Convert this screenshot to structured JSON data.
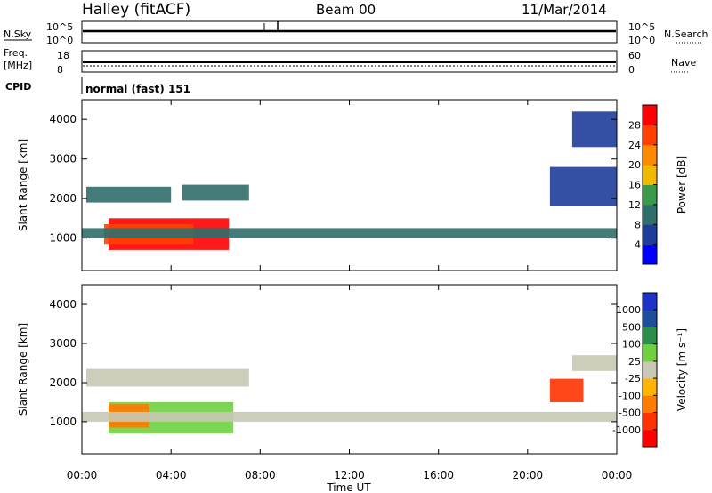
{
  "header": {
    "station": "Halley (fitACF)",
    "beam": "Beam 00",
    "date": "11/Mar/2014"
  },
  "params": {
    "nsky_label": "N.Sky",
    "nsky_ticks": [
      "10^5",
      "10^0"
    ],
    "nsearch_label": "N.Search",
    "nsearch_ticks": [
      "10^5",
      "10^0"
    ],
    "freq_label": "Freq.",
    "freq_unit": "[MHz]",
    "freq_ticks": [
      "18",
      "8"
    ],
    "nave_label": "Nave",
    "nave_ticks": [
      "60",
      "0"
    ],
    "cpid_label": "CPID",
    "cpid_value": "normal (fast) 151"
  },
  "colors": {
    "power": [
      "#0000ff",
      "#1e3c9a",
      "#2f6e6a",
      "#3a9a4a",
      "#f0b800",
      "#ff8a00",
      "#ff4000",
      "#ff0000"
    ],
    "velocity": [
      "#ff0000",
      "#ff3300",
      "#ff7a00",
      "#ffb400",
      "#c8c8b4",
      "#70d040",
      "#2e8c4a",
      "#1f4e9a",
      "#1e32c8"
    ]
  },
  "chart_data": [
    {
      "type": "heatmap",
      "name_id": "power",
      "xlabel": "Time UT",
      "ylabel": "Slant Range [km]",
      "x_ticks": [
        "00:00",
        "04:00",
        "08:00",
        "12:00",
        "16:00",
        "20:00",
        "00:00"
      ],
      "xlim": [
        0,
        24
      ],
      "y_ticks": [
        "1000",
        "2000",
        "3000",
        "4000"
      ],
      "ylim": [
        180,
        4500
      ],
      "colorbar_label": "Power [dB]",
      "colorbar_ticks": [
        "4",
        "8",
        "12",
        "16",
        "20",
        "24",
        "28"
      ],
      "colorbar_range": [
        0,
        32
      ],
      "regions": [
        {
          "t0": 1.2,
          "t1": 6.6,
          "r0": 700,
          "r1": 1500,
          "value": 28
        },
        {
          "t0": 1.0,
          "t1": 5.0,
          "r0": 850,
          "r1": 1350,
          "value": 24
        },
        {
          "t0": 0.0,
          "t1": 24.0,
          "r0": 1000,
          "r1": 1250,
          "value": 10
        },
        {
          "t0": 0.2,
          "t1": 4.0,
          "r0": 1900,
          "r1": 2300,
          "value": 10
        },
        {
          "t0": 4.5,
          "t1": 7.5,
          "r0": 1950,
          "r1": 2350,
          "value": 8
        },
        {
          "t0": 21.0,
          "t1": 24.0,
          "r0": 1800,
          "r1": 2800,
          "value": 6
        },
        {
          "t0": 22.0,
          "t1": 24.0,
          "r0": 3300,
          "r1": 4200,
          "value": 4
        }
      ]
    },
    {
      "type": "heatmap",
      "name_id": "velocity",
      "xlabel": "Time UT",
      "ylabel": "Slant Range [km]",
      "x_ticks": [
        "00:00",
        "04:00",
        "08:00",
        "12:00",
        "16:00",
        "20:00",
        "00:00"
      ],
      "xlim": [
        0,
        24
      ],
      "y_ticks": [
        "1000",
        "2000",
        "3000",
        "4000"
      ],
      "ylim": [
        180,
        4500
      ],
      "colorbar_label": "Velocity [m s⁻¹]",
      "colorbar_ticks": [
        "1000",
        "500",
        "100",
        "25",
        "-25",
        "-100",
        "-500",
        "-1000"
      ],
      "regions": [
        {
          "t0": 1.2,
          "t1": 6.8,
          "r0": 700,
          "r1": 1500,
          "value": 60
        },
        {
          "t0": 1.2,
          "t1": 3.0,
          "r0": 850,
          "r1": 1450,
          "value": -150
        },
        {
          "t0": 0.0,
          "t1": 24.0,
          "r0": 1000,
          "r1": 1250,
          "value": 0
        },
        {
          "t0": 0.2,
          "t1": 7.5,
          "r0": 1900,
          "r1": 2350,
          "value": 0
        },
        {
          "t0": 21.0,
          "t1": 22.5,
          "r0": 1500,
          "r1": 2100,
          "value": -600
        },
        {
          "t0": 22.0,
          "t1": 24.0,
          "r0": 2300,
          "r1": 2700,
          "value": 0
        }
      ]
    }
  ]
}
